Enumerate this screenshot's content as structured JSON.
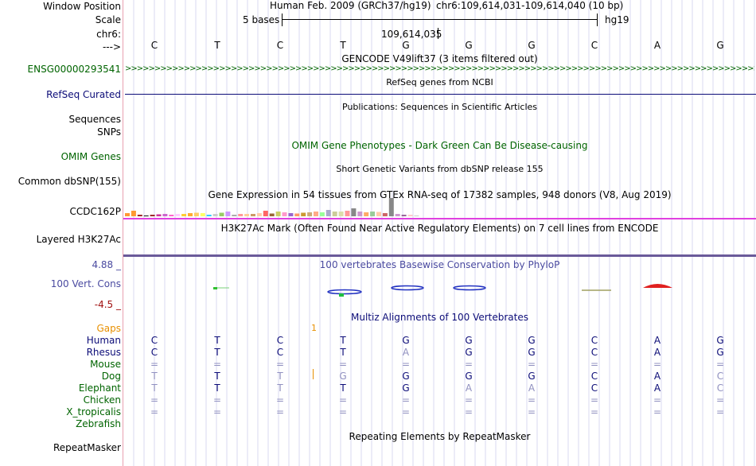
{
  "header": {
    "window_position_label": "Window Position",
    "scale_label": "Scale",
    "chrom_label": "chr6:",
    "arrow_label": "--->",
    "assembly": "Human Feb. 2009 (GRCh37/hg19)",
    "position": "chr6:109,614,031-109,614,040 (10 bp)",
    "scale_text": "5 bases",
    "db": "hg19",
    "coordinate": "109,614,035",
    "sequence": [
      "C",
      "T",
      "C",
      "T",
      "G",
      "G",
      "G",
      "C",
      "A",
      "G"
    ]
  },
  "tracks": {
    "gencode": {
      "label": "ENSG00000293541",
      "title": "GENCODE V49lift37 (3 items filtered out)",
      "color": "#006400"
    },
    "refseq": {
      "label": "RefSeq Curated",
      "title": "RefSeq genes from NCBI",
      "color": "#0c0c78"
    },
    "publications": {
      "title": "Publications: Sequences in Scientific Articles",
      "label": "Sequences"
    },
    "snps": {
      "label": "SNPs"
    },
    "omim": {
      "label": "OMIM Genes",
      "title": "OMIM Gene Phenotypes - Dark Green Can Be Disease-causing",
      "color": "#006400"
    },
    "dbsnp": {
      "label": "Common dbSNP(155)",
      "title": "Short Genetic Variants from dbSNP release 155"
    },
    "gtex": {
      "label": "CCDC162P",
      "title": "Gene Expression in 54 tissues from GTEx RNA-seq of 17382 samples, 948 donors (V8, Aug 2019)"
    },
    "h3k27ac": {
      "label": "Layered H3K27Ac",
      "title": "H3K27Ac Mark (Often Found Near Active Regulatory Elements) on 7 cell lines from ENCODE"
    },
    "cons": {
      "label": "100 Vert. Cons",
      "max": "4.88 _",
      "min": "-4.5 _",
      "title": "100 vertebrates Basewise Conservation by PhyloP",
      "color": "#4a4aa0"
    },
    "multiz": {
      "title": "Multiz Alignments of 100 Vertebrates",
      "gaps_label": "Gaps",
      "gap_mark": "1",
      "species": [
        {
          "name": "Human",
          "bases": [
            "C",
            "T",
            "C",
            "T",
            "G",
            "G",
            "G",
            "C",
            "A",
            "G"
          ]
        },
        {
          "name": "Rhesus",
          "bases": [
            "C",
            "T",
            "C",
            "T",
            "A",
            "G",
            "G",
            "C",
            "A",
            "G"
          ]
        },
        {
          "name": "Mouse",
          "bases": [
            "=",
            "=",
            "=",
            "=",
            "=",
            "=",
            "=",
            "=",
            "=",
            "="
          ]
        },
        {
          "name": "Dog",
          "bases": [
            "T",
            "T",
            "T",
            "G",
            "G",
            "G",
            "G",
            "C",
            "A",
            "C"
          ]
        },
        {
          "name": "Elephant",
          "bases": [
            "T",
            "T",
            "T",
            "T",
            "G",
            "A",
            "A",
            "C",
            "A",
            "C"
          ]
        },
        {
          "name": "Chicken",
          "bases": [
            "=",
            "=",
            "=",
            "=",
            "=",
            "=",
            "=",
            "=",
            "=",
            "="
          ]
        },
        {
          "name": "X_tropicalis",
          "bases": [
            "=",
            "=",
            "=",
            "=",
            "=",
            "=",
            "=",
            "=",
            "=",
            "="
          ]
        },
        {
          "name": "Zebrafish",
          "bases": []
        }
      ]
    },
    "repeatmasker": {
      "label": "RepeatMasker",
      "title": "Repeating Elements by RepeatMasker"
    }
  },
  "gtex_bars": [
    0.4,
    0.7,
    0.2,
    0.1,
    0.2,
    0.25,
    0.3,
    0.2,
    0.3,
    0.3,
    0.4,
    0.45,
    0.4,
    0.2,
    0.3,
    0.45,
    0.6,
    0.2,
    0.3,
    0.3,
    0.3,
    0.4,
    0.7,
    0.35,
    0.6,
    0.5,
    0.4,
    0.35,
    0.45,
    0.5,
    0.6,
    0.5,
    0.8,
    0.6,
    0.6,
    0.7,
    1.0,
    0.6,
    0.5,
    0.6,
    0.55,
    0.4,
    2.3,
    0.3,
    0.2,
    0.2,
    0.1
  ]
}
